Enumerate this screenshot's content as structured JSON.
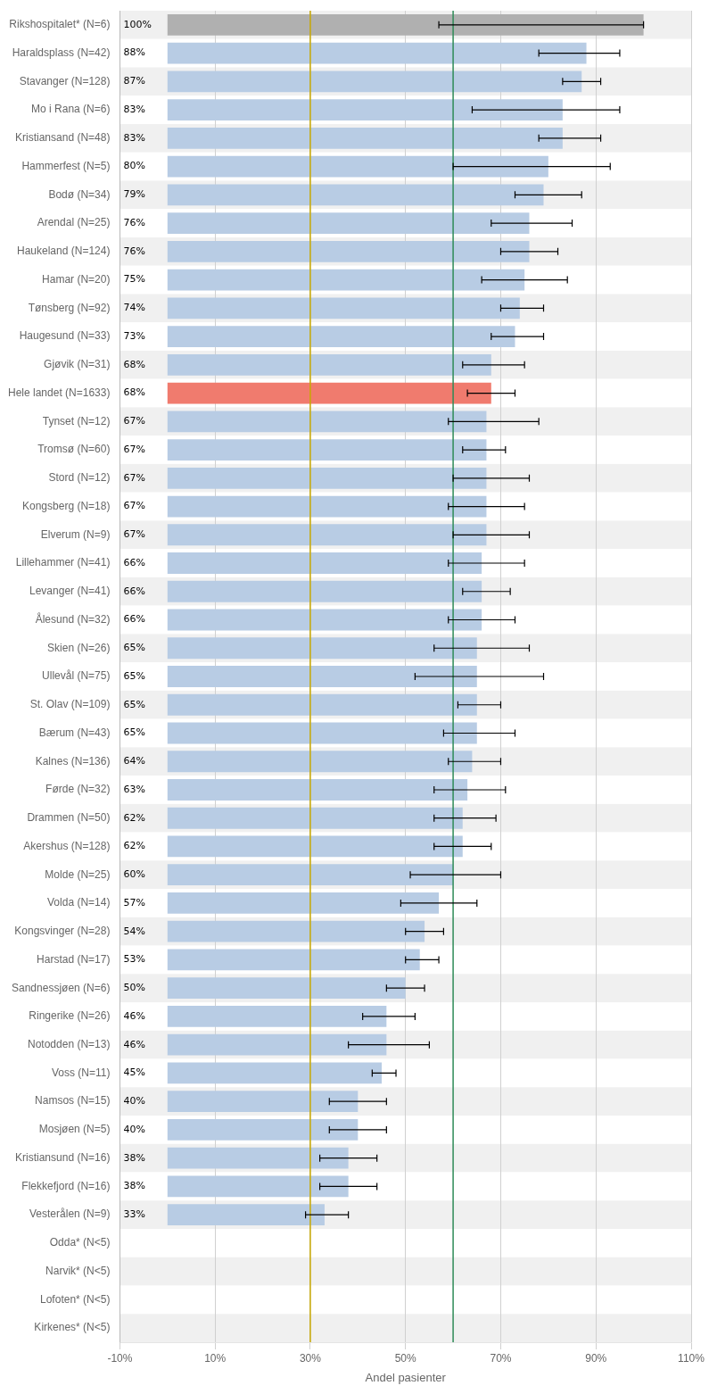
{
  "chart_data": {
    "type": "bar",
    "orientation": "horizontal",
    "xlabel": "Andel pasienter",
    "categories": [
      "Rikshospitalet* (N=6)",
      "Haraldsplass (N=42)",
      "Stavanger (N=128)",
      "Mo i Rana (N=6)",
      "Kristiansand (N=48)",
      "Hammerfest (N=5)",
      "Bodø (N=34)",
      "Arendal (N=25)",
      "Haukeland (N=124)",
      "Hamar (N=20)",
      "Tønsberg (N=92)",
      "Haugesund (N=33)",
      "Gjøvik (N=31)",
      "Hele landet (N=1633)",
      "Tynset (N=12)",
      "Tromsø (N=60)",
      "Stord (N=12)",
      "Kongsberg (N=18)",
      "Elverum (N=9)",
      "Lillehammer (N=41)",
      "Levanger (N=41)",
      "Ålesund (N=32)",
      "Skien (N=26)",
      "Ullevål (N=75)",
      "St. Olav (N=109)",
      "Bærum (N=43)",
      "Kalnes (N=136)",
      "Førde (N=32)",
      "Drammen (N=50)",
      "Akershus (N=128)",
      "Molde (N=25)",
      "Volda (N=14)",
      "Kongsvinger (N=28)",
      "Harstad (N=17)",
      "Sandnessjøen (N=6)",
      "Ringerike (N=26)",
      "Notodden (N=13)",
      "Voss (N=11)",
      "Namsos (N=15)",
      "Mosjøen (N=5)",
      "Kristiansund (N=16)",
      "Flekkefjord (N=16)",
      "Vesterålen (N=9)",
      "Odda* (N<5)",
      "Narvik* (N<5)",
      "Lofoten* (N<5)",
      "Kirkenes* (N<5)"
    ],
    "values": [
      100,
      88,
      87,
      83,
      83,
      80,
      79,
      76,
      76,
      75,
      74,
      73,
      68,
      68,
      67,
      67,
      67,
      67,
      67,
      66,
      66,
      66,
      65,
      65,
      65,
      65,
      64,
      63,
      62,
      62,
      60,
      57,
      54,
      53,
      50,
      46,
      46,
      45,
      40,
      40,
      38,
      38,
      33,
      null,
      null,
      null,
      null
    ],
    "value_labels": [
      "100%",
      "88%",
      "87%",
      "83%",
      "83%",
      "80%",
      "79%",
      "76%",
      "76%",
      "75%",
      "74%",
      "73%",
      "68%",
      "68%",
      "67%",
      "67%",
      "67%",
      "67%",
      "67%",
      "66%",
      "66%",
      "66%",
      "65%",
      "65%",
      "65%",
      "65%",
      "64%",
      "63%",
      "62%",
      "62%",
      "60%",
      "57%",
      "54%",
      "53%",
      "50%",
      "46%",
      "46%",
      "45%",
      "40%",
      "40%",
      "38%",
      "38%",
      "33%",
      null,
      null,
      null,
      null
    ],
    "ci_low": [
      57,
      78,
      83,
      64,
      78,
      60,
      73,
      68,
      70,
      66,
      70,
      68,
      62,
      63,
      59,
      62,
      60,
      59,
      60,
      59,
      62,
      59,
      56,
      52,
      61,
      58,
      59,
      56,
      56,
      56,
      51,
      49,
      50,
      50,
      46,
      41,
      38,
      43,
      34,
      34,
      32,
      32,
      29,
      null,
      null,
      null,
      null
    ],
    "ci_high": [
      100,
      95,
      91,
      95,
      91,
      93,
      87,
      85,
      82,
      84,
      79,
      79,
      75,
      73,
      78,
      71,
      76,
      75,
      76,
      75,
      72,
      73,
      76,
      79,
      70,
      73,
      70,
      71,
      69,
      68,
      70,
      65,
      58,
      57,
      54,
      52,
      55,
      48,
      46,
      46,
      44,
      44,
      38,
      null,
      null,
      null,
      null
    ],
    "colors": [
      "#b0b0b0",
      "#b8cce4",
      "#b8cce4",
      "#b8cce4",
      "#b8cce4",
      "#b8cce4",
      "#b8cce4",
      "#b8cce4",
      "#b8cce4",
      "#b8cce4",
      "#b8cce4",
      "#b8cce4",
      "#b8cce4",
      "#f07b6e",
      "#b8cce4",
      "#b8cce4",
      "#b8cce4",
      "#b8cce4",
      "#b8cce4",
      "#b8cce4",
      "#b8cce4",
      "#b8cce4",
      "#b8cce4",
      "#b8cce4",
      "#b8cce4",
      "#b8cce4",
      "#b8cce4",
      "#b8cce4",
      "#b8cce4",
      "#b8cce4",
      "#b8cce4",
      "#b8cce4",
      "#b8cce4",
      "#b8cce4",
      "#b8cce4",
      "#b8cce4",
      "#b8cce4",
      "#b8cce4",
      "#b8cce4",
      "#b8cce4",
      "#b8cce4",
      "#b8cce4",
      "#b8cce4",
      "#b8cce4",
      "#b8cce4",
      "#b8cce4",
      "#b8cce4"
    ],
    "vlines": [
      {
        "value": 30,
        "color": "#c8a800"
      },
      {
        "value": 60,
        "color": "#2e8b57"
      }
    ],
    "xlim": [
      -10,
      110
    ],
    "xticks": [
      {
        "value": -10,
        "label": "-10%"
      },
      {
        "value": 10,
        "label": "10%"
      },
      {
        "value": 30,
        "label": "30%"
      },
      {
        "value": 50,
        "label": "50%"
      },
      {
        "value": 70,
        "label": "70%"
      },
      {
        "value": 90,
        "label": "90%"
      },
      {
        "value": 110,
        "label": "110%"
      }
    ],
    "grid": true,
    "data_labels": true
  }
}
